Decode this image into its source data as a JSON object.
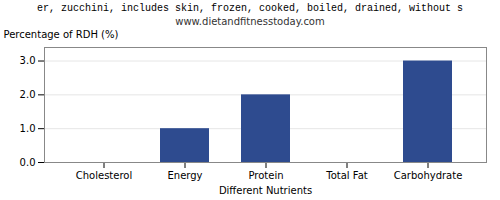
{
  "chart_data": {
    "type": "bar",
    "title": "er, zucchini, includes skin, frozen, cooked, boiled, drained, without s",
    "subtitle": "www.dietandfitnesstoday.com",
    "categories": [
      "Cholesterol",
      "Energy",
      "Protein",
      "Total Fat",
      "Carbohydrate"
    ],
    "values": [
      0.0,
      1.0,
      2.0,
      0.0,
      3.0
    ],
    "color": "#2e4b8f",
    "xlabel": "Different Nutrients",
    "ylabel": "Percentage of RDH (%)",
    "ylim": [
      0,
      3.4
    ],
    "yticks": [
      {
        "value": 0,
        "label": "0.0"
      },
      {
        "value": 1,
        "label": "1.0"
      },
      {
        "value": 2,
        "label": "2.0"
      },
      {
        "value": 3,
        "label": "3.0"
      }
    ],
    "grid": true
  }
}
